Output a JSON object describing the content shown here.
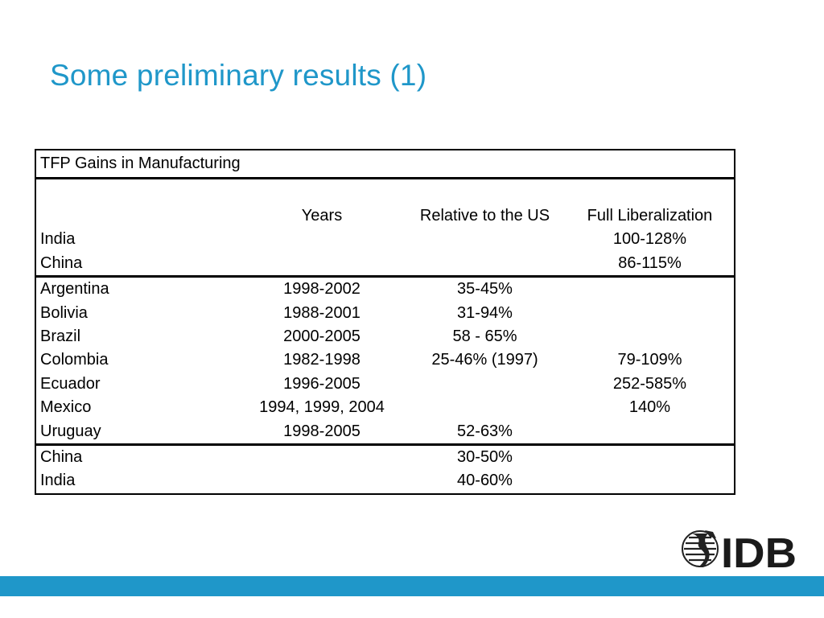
{
  "slide": {
    "title": "Some preliminary results (1)",
    "accent_color": "#1f97c9"
  },
  "table": {
    "caption": "TFP Gains in Manufacturing",
    "headers": [
      "",
      "Years",
      "Relative to the US",
      "Full Liberalization"
    ],
    "section1": [
      [
        "India",
        "",
        "",
        "100-128%"
      ],
      [
        "China",
        "",
        "",
        "86-115%"
      ]
    ],
    "section2": [
      [
        "Argentina",
        "1998-2002",
        "35-45%",
        ""
      ],
      [
        "Bolivia",
        "1988-2001",
        "31-94%",
        ""
      ],
      [
        "Brazil",
        "2000-2005",
        "58 - 65%",
        ""
      ],
      [
        "Colombia",
        "1982-1998",
        "25-46% (1997)",
        "79-109%"
      ],
      [
        "Ecuador",
        "1996-2005",
        "",
        "252-585%"
      ],
      [
        "Mexico",
        "1994, 1999, 2004",
        "",
        "140%"
      ],
      [
        "Uruguay",
        "1998-2005",
        "52-63%",
        ""
      ]
    ],
    "section3": [
      [
        "China",
        "",
        "30-50%",
        ""
      ],
      [
        "India",
        "",
        "40-60%",
        ""
      ]
    ]
  },
  "logo": {
    "text": "IDB",
    "icon": "globe-icon"
  }
}
